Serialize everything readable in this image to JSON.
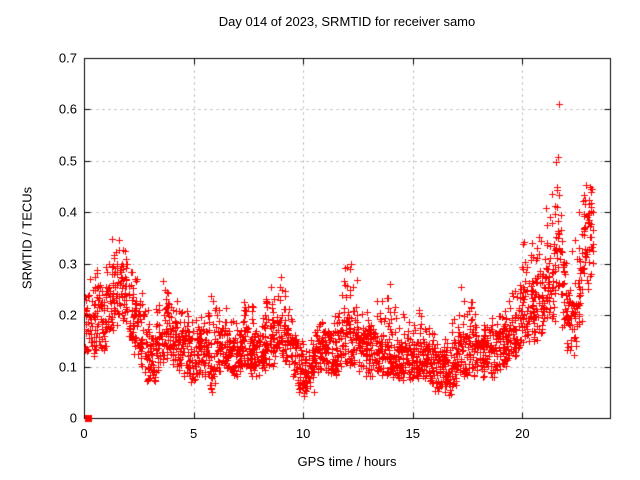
{
  "page": {
    "background": "#ffffff"
  },
  "chart_data": {
    "type": "scatter",
    "title": "Day 014 of 2023, SRMTID for receiver samo",
    "xlabel": "GPS time / hours",
    "ylabel": "SRMTID / TECUs",
    "xlim": [
      0,
      24
    ],
    "ylim": [
      0,
      0.7
    ],
    "x_ticks": [
      0,
      5,
      10,
      15,
      20
    ],
    "y_ticks": [
      0,
      0.1,
      0.2,
      0.3,
      0.4,
      0.5,
      0.6,
      0.7
    ],
    "grid": true,
    "legend": null,
    "colors": {
      "marker": "#ff0000",
      "grid": "#b0b0b0",
      "axis": "#000000",
      "text": "#000000"
    },
    "marker": {
      "shape": "plus",
      "size": 7
    },
    "special_points": [
      {
        "x": 0.2,
        "y": 0,
        "shape": "filled-square",
        "size": 7
      }
    ],
    "series": [
      {
        "name": "SRMTID",
        "sampling": {
          "bin_hours": 0.25,
          "points_per_bin": 28,
          "columns_per_bin": 6,
          "seed": 20230114,
          "band_fraction": 0.78,
          "peak_bias": 1.7
        },
        "envelope_bins_t_lo_hi_peak": [
          [
            0.0,
            0.13,
            0.21,
            0.25
          ],
          [
            0.25,
            0.12,
            0.2,
            0.29
          ],
          [
            0.5,
            0.13,
            0.22,
            0.29
          ],
          [
            0.75,
            0.13,
            0.22,
            0.26
          ],
          [
            1.0,
            0.15,
            0.25,
            0.3
          ],
          [
            1.25,
            0.17,
            0.28,
            0.35
          ],
          [
            1.5,
            0.2,
            0.3,
            0.39
          ],
          [
            1.75,
            0.18,
            0.28,
            0.33
          ],
          [
            2.0,
            0.15,
            0.25,
            0.3
          ],
          [
            2.25,
            0.12,
            0.22,
            0.28
          ],
          [
            2.5,
            0.1,
            0.2,
            0.25
          ],
          [
            2.75,
            0.07,
            0.16,
            0.22
          ],
          [
            3.0,
            0.07,
            0.15,
            0.2
          ],
          [
            3.25,
            0.08,
            0.17,
            0.22
          ],
          [
            3.5,
            0.1,
            0.2,
            0.28
          ],
          [
            3.75,
            0.11,
            0.21,
            0.27
          ],
          [
            4.0,
            0.1,
            0.19,
            0.25
          ],
          [
            4.25,
            0.09,
            0.18,
            0.23
          ],
          [
            4.5,
            0.08,
            0.17,
            0.21
          ],
          [
            4.75,
            0.06,
            0.15,
            0.19
          ],
          [
            5.0,
            0.07,
            0.15,
            0.2
          ],
          [
            5.25,
            0.08,
            0.16,
            0.21
          ],
          [
            5.5,
            0.08,
            0.17,
            0.22
          ],
          [
            5.75,
            0.05,
            0.16,
            0.25
          ],
          [
            6.0,
            0.09,
            0.17,
            0.22
          ],
          [
            6.25,
            0.1,
            0.18,
            0.22
          ],
          [
            6.5,
            0.09,
            0.16,
            0.2
          ],
          [
            6.75,
            0.08,
            0.15,
            0.19
          ],
          [
            7.0,
            0.09,
            0.16,
            0.2
          ],
          [
            7.25,
            0.09,
            0.17,
            0.23
          ],
          [
            7.5,
            0.08,
            0.16,
            0.23
          ],
          [
            7.75,
            0.08,
            0.15,
            0.19
          ],
          [
            8.0,
            0.09,
            0.16,
            0.2
          ],
          [
            8.25,
            0.1,
            0.18,
            0.24
          ],
          [
            8.5,
            0.1,
            0.19,
            0.26
          ],
          [
            8.75,
            0.11,
            0.2,
            0.28
          ],
          [
            9.0,
            0.1,
            0.19,
            0.27
          ],
          [
            9.25,
            0.1,
            0.18,
            0.22
          ],
          [
            9.5,
            0.08,
            0.15,
            0.18
          ],
          [
            9.75,
            0.05,
            0.12,
            0.16
          ],
          [
            10.0,
            0.04,
            0.11,
            0.15
          ],
          [
            10.25,
            0.05,
            0.12,
            0.16
          ],
          [
            10.5,
            0.08,
            0.15,
            0.19
          ],
          [
            10.75,
            0.09,
            0.16,
            0.2
          ],
          [
            11.0,
            0.09,
            0.16,
            0.21
          ],
          [
            11.25,
            0.08,
            0.15,
            0.2
          ],
          [
            11.5,
            0.09,
            0.17,
            0.24
          ],
          [
            11.75,
            0.1,
            0.2,
            0.31
          ],
          [
            12.0,
            0.1,
            0.2,
            0.3
          ],
          [
            12.25,
            0.1,
            0.19,
            0.29
          ],
          [
            12.5,
            0.09,
            0.17,
            0.24
          ],
          [
            12.75,
            0.08,
            0.16,
            0.21
          ],
          [
            13.0,
            0.08,
            0.16,
            0.2
          ],
          [
            13.25,
            0.09,
            0.16,
            0.24
          ],
          [
            13.5,
            0.08,
            0.16,
            0.24
          ],
          [
            13.75,
            0.08,
            0.17,
            0.27
          ],
          [
            14.0,
            0.08,
            0.16,
            0.22
          ],
          [
            14.25,
            0.07,
            0.14,
            0.18
          ],
          [
            14.5,
            0.07,
            0.15,
            0.27
          ],
          [
            14.75,
            0.07,
            0.14,
            0.19
          ],
          [
            15.0,
            0.07,
            0.14,
            0.21
          ],
          [
            15.25,
            0.08,
            0.15,
            0.21
          ],
          [
            15.5,
            0.07,
            0.14,
            0.18
          ],
          [
            15.75,
            0.06,
            0.13,
            0.17
          ],
          [
            16.0,
            0.05,
            0.12,
            0.16
          ],
          [
            16.25,
            0.05,
            0.12,
            0.16
          ],
          [
            16.5,
            0.04,
            0.11,
            0.15
          ],
          [
            16.75,
            0.06,
            0.14,
            0.22
          ],
          [
            17.0,
            0.08,
            0.16,
            0.26
          ],
          [
            17.25,
            0.08,
            0.16,
            0.23
          ],
          [
            17.5,
            0.09,
            0.17,
            0.24
          ],
          [
            17.75,
            0.08,
            0.16,
            0.21
          ],
          [
            18.0,
            0.08,
            0.15,
            0.2
          ],
          [
            18.25,
            0.09,
            0.16,
            0.21
          ],
          [
            18.5,
            0.08,
            0.16,
            0.2
          ],
          [
            18.75,
            0.09,
            0.16,
            0.21
          ],
          [
            19.0,
            0.1,
            0.17,
            0.22
          ],
          [
            19.25,
            0.11,
            0.18,
            0.23
          ],
          [
            19.5,
            0.11,
            0.19,
            0.26
          ],
          [
            19.75,
            0.12,
            0.22,
            0.3
          ],
          [
            20.0,
            0.14,
            0.25,
            0.37
          ],
          [
            20.25,
            0.15,
            0.26,
            0.35
          ],
          [
            20.5,
            0.15,
            0.27,
            0.34
          ],
          [
            20.75,
            0.16,
            0.28,
            0.4
          ],
          [
            21.0,
            0.17,
            0.3,
            0.42
          ],
          [
            21.25,
            0.18,
            0.32,
            0.52
          ],
          [
            21.5,
            0.25,
            0.45,
            0.62
          ],
          [
            21.75,
            0.17,
            0.3,
            0.44
          ],
          [
            22.0,
            0.13,
            0.22,
            0.3
          ],
          [
            22.25,
            0.12,
            0.22,
            0.35
          ],
          [
            22.5,
            0.18,
            0.32,
            0.44
          ],
          [
            22.75,
            0.25,
            0.38,
            0.46
          ],
          [
            23.0,
            0.26,
            0.4,
            0.45
          ]
        ]
      }
    ]
  }
}
